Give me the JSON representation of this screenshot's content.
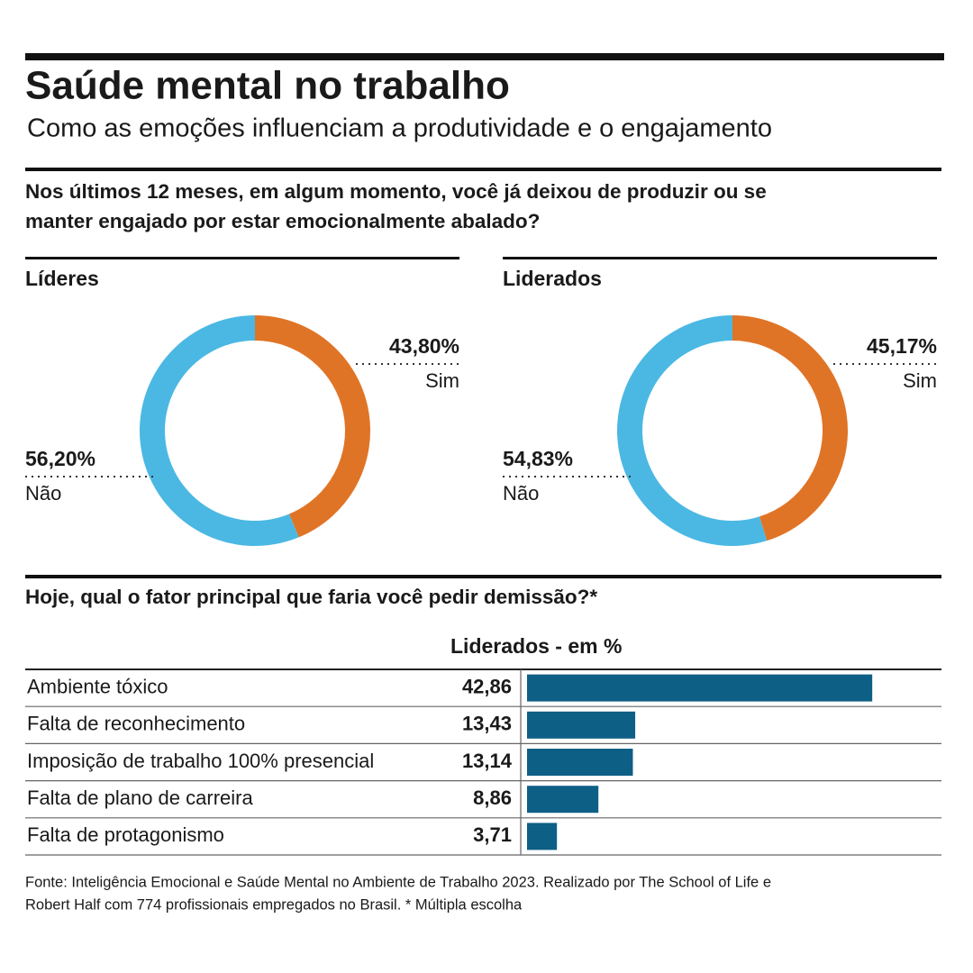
{
  "header": {
    "title": "Saúde mental no trabalho",
    "subtitle": "Como as emoções influenciam a produtividade e o engajamento"
  },
  "question": [
    "Nos últimos 12 meses, em algum momento, você já deixou de produzir ou se",
    "manter engajado por estar emocionalmente abalado?"
  ],
  "chart_data": [
    {
      "type": "donut",
      "title": "Líderes",
      "categories": [
        "Sim",
        "Não"
      ],
      "values": [
        43.8,
        56.2
      ],
      "value_labels": [
        "43,80%",
        "56,20%"
      ],
      "colors": [
        "#e07426",
        "#4bb8e3"
      ]
    },
    {
      "type": "donut",
      "title": "Liderados",
      "categories": [
        "Sim",
        "Não"
      ],
      "values": [
        45.17,
        54.83
      ],
      "value_labels": [
        "45,17%",
        "54,83%"
      ],
      "colors": [
        "#e07426",
        "#4bb8e3"
      ]
    },
    {
      "type": "barh",
      "title": "Hoje, qual o fator principal que faria você pedir demissão?*",
      "subtitle": "Liderados - em %",
      "categories": [
        "Ambiente tóxico",
        "Falta de reconhecimento",
        "Imposição de trabalho 100% presencial",
        "Falta de plano de carreira",
        "Falta de protagonismo"
      ],
      "values": [
        42.86,
        13.43,
        13.14,
        8.86,
        3.71
      ],
      "value_labels": [
        "42,86",
        "13,43",
        "13,14",
        "8,86",
        "3,71"
      ],
      "color": "#0e5f86"
    }
  ],
  "source": [
    "Fonte: Inteligência Emocional e Saúde Mental no Ambiente de Trabalho 2023. Realizado por The School of Life e",
    "Robert Half com 774 profissionais empregados no Brasil. * Múltipla escolha"
  ]
}
